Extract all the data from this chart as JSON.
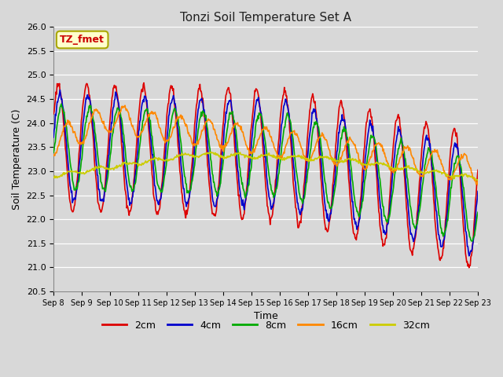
{
  "title": "Tonzi Soil Temperature Set A",
  "xlabel": "Time",
  "ylabel": "Soil Temperature (C)",
  "ylim": [
    20.5,
    26.0
  ],
  "annotation_text": "TZ_fmet",
  "annotation_bg": "#ffffcc",
  "annotation_border": "#aaa800",
  "annotation_text_color": "#cc0000",
  "series_colors": {
    "2cm": "#dd0000",
    "4cm": "#0000cc",
    "8cm": "#00aa00",
    "16cm": "#ff8800",
    "32cm": "#cccc00"
  },
  "x_tick_labels": [
    "Sep 8",
    "Sep 9",
    "Sep 10",
    "Sep 11",
    "Sep 12",
    "Sep 13",
    "Sep 14",
    "Sep 15",
    "Sep 16",
    "Sep 17",
    "Sep 18",
    "Sep 19",
    "Sep 20",
    "Sep 21",
    "Sep 22",
    "Sep 23"
  ],
  "bg_color": "#d8d8d8",
  "plot_bg_color": "#d8d8d8",
  "grid_color": "#ffffff",
  "linewidth": 1.2,
  "legend_labels": [
    "2cm",
    "4cm",
    "8cm",
    "16cm",
    "32cm"
  ]
}
